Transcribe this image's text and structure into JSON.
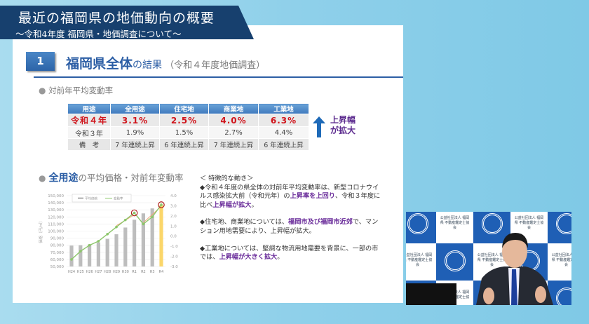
{
  "header": {
    "title": "最近の福岡県の地価動向の概要",
    "subtitle": "～令和4年度 福岡県・地価調査について～"
  },
  "section": {
    "number": "1",
    "title_bold": "福岡県全体",
    "title_rest": "の結果",
    "title_note": "（令和４年度地価調査）"
  },
  "rate_section": {
    "heading": "対前年平均変動率"
  },
  "table": {
    "headers": [
      "用途",
      "全用途",
      "住宅地",
      "商業地",
      "工業地"
    ],
    "rows": [
      [
        "令和４年",
        "3.1%",
        "2.5%",
        "4.0%",
        "6.3%"
      ],
      [
        "令和３年",
        "1.9%",
        "1.5%",
        "2.7%",
        "4.4%"
      ],
      [
        "備　考",
        "7 年連続上昇",
        "6 年連続上昇",
        "7 年連続上昇",
        "6 年連続上昇"
      ]
    ],
    "callout_line1": "上昇幅",
    "callout_line2": "が拡大"
  },
  "chart_section": {
    "heading_bold": "全用途",
    "heading_rest": "の平均価格・対前年変動率"
  },
  "chart_data": {
    "type": "bar+line",
    "categories": [
      "H24",
      "H25",
      "H26",
      "H27",
      "H28",
      "H29",
      "H30",
      "R1",
      "R2",
      "R3",
      "R4"
    ],
    "series": [
      {
        "name": "平均価格",
        "type": "bar",
        "axis": "left",
        "values": [
          79500,
          80000,
          81000,
          84000,
          89000,
          95500,
          105000,
          116000,
          125000,
          132000,
          137000
        ]
      },
      {
        "name": "変動率",
        "type": "line",
        "axis": "right",
        "values": [
          -2.3,
          -1.5,
          -0.9,
          -0.5,
          0.2,
          0.9,
          1.6,
          2.3,
          1.2,
          1.9,
          3.1
        ]
      }
    ],
    "ylabel": "価格（円/㎡）",
    "ylim_left": [
      50000,
      150000
    ],
    "ylim_right": [
      -3.0,
      4.0
    ],
    "left_ticks": [
      "50,000",
      "60,000",
      "70,000",
      "80,000",
      "90,000",
      "100,000",
      "110,000",
      "120,000",
      "130,000",
      "140,000",
      "150,000"
    ],
    "right_ticks": [
      "-3.0",
      "-2.0",
      "-1.0",
      "0.0",
      "1.0",
      "2.0",
      "3.0",
      "4.0"
    ],
    "legend": "top",
    "highlighted": [
      "R1",
      "R4"
    ],
    "colors": {
      "bar": "#bdbdbd",
      "bar_highlight": "#fbd66a",
      "line": "#8cc66a",
      "circle": "#b0201e",
      "arrow": "#f0a070"
    }
  },
  "notes": {
    "heading": "＜ 特徴的な動き＞",
    "p1": [
      "◆令和４年度の県全体の対前年平均変動率は、新型コロナウイルス感染拡大前（令和元年）の",
      "上昇率を上回り",
      "、令和３年度に比べ",
      "上昇幅が拡大",
      "。"
    ],
    "p2": [
      "◆住宅地、商業地については、",
      "福岡市及び福岡市近郊",
      "で、マンション用地需要により、上昇幅が拡大。"
    ],
    "p3": [
      "◆工業地については、堅調な物流用地需要を背景に、一部の市では、",
      "上昇幅が大きく拡大",
      "。"
    ]
  },
  "video": {
    "backdrop_text": "公益社団法人 福岡県 不動産鑑定士協会"
  },
  "colors": {
    "navy": "#17406e",
    "accent_blue": "#2c5ea5",
    "red": "#d0141b",
    "purple": "#6a2c9a"
  }
}
